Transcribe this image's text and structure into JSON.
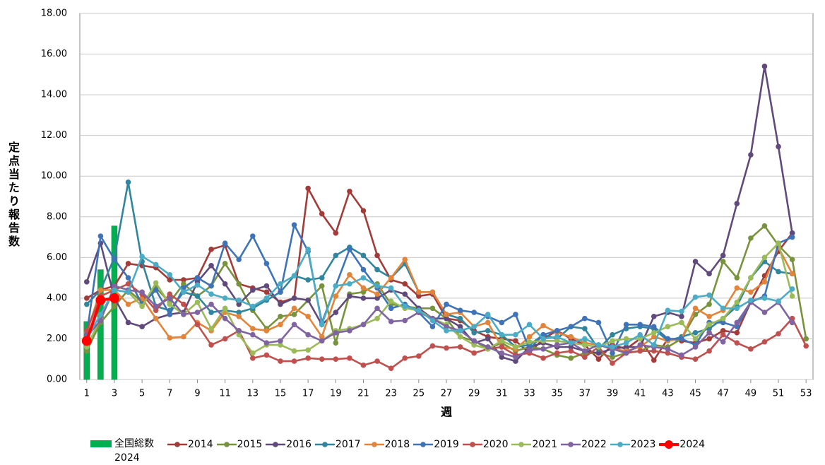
{
  "chart_data": {
    "type": "line",
    "y_label": "定点当たり報告数",
    "x_label": "週",
    "xlim": [
      0.5,
      53.5
    ],
    "x": [
      1,
      2,
      3,
      4,
      5,
      6,
      7,
      8,
      9,
      10,
      11,
      12,
      13,
      14,
      15,
      16,
      17,
      18,
      19,
      20,
      21,
      22,
      23,
      24,
      25,
      26,
      27,
      28,
      29,
      30,
      31,
      32,
      33,
      34,
      35,
      36,
      37,
      38,
      39,
      40,
      41,
      42,
      43,
      44,
      45,
      46,
      47,
      48,
      49,
      50,
      51,
      52,
      53
    ],
    "xticks": [
      1,
      3,
      5,
      7,
      9,
      11,
      13,
      15,
      17,
      19,
      21,
      23,
      25,
      27,
      29,
      31,
      33,
      35,
      37,
      39,
      41,
      43,
      45,
      47,
      49,
      51,
      53
    ],
    "ylim": [
      0,
      18
    ],
    "yticks": [
      {
        "value": 0,
        "label": "0.00"
      },
      {
        "value": 2,
        "label": "2.00"
      },
      {
        "value": 4,
        "label": "4.00"
      },
      {
        "value": 6,
        "label": "6.00"
      },
      {
        "value": 8,
        "label": "8.00"
      },
      {
        "value": 10,
        "label": "10.00"
      },
      {
        "value": 12,
        "label": "12.00"
      },
      {
        "value": 14,
        "label": "14.00"
      },
      {
        "value": 16,
        "label": "16.00"
      },
      {
        "value": 18,
        "label": "18.00"
      }
    ],
    "grid": true,
    "series": [
      {
        "name": "全国総数 2024",
        "type": "bar",
        "color": "#00b050",
        "values": [
          2.85,
          5.4,
          7.55,
          null,
          null,
          null,
          null,
          null,
          null,
          null,
          null,
          null,
          null,
          null,
          null,
          null,
          null,
          null,
          null,
          null,
          null,
          null,
          null,
          null,
          null,
          null,
          null,
          null,
          null,
          null,
          null,
          null,
          null,
          null,
          null,
          null,
          null,
          null,
          null,
          null,
          null,
          null,
          null,
          null,
          null,
          null,
          null,
          null,
          null,
          null,
          null,
          null,
          null
        ]
      },
      {
        "name": "2014",
        "color": "#a33b39",
        "values": [
          4.0,
          4.4,
          4.6,
          5.7,
          5.6,
          5.5,
          4.9,
          4.9,
          5.0,
          6.4,
          6.6,
          4.7,
          4.5,
          4.3,
          3.8,
          4.0,
          9.4,
          8.15,
          7.2,
          9.25,
          8.3,
          6.1,
          4.9,
          4.7,
          4.1,
          4.2,
          3.0,
          2.9,
          2.4,
          2.1,
          2.0,
          1.9,
          1.3,
          2.0,
          2.4,
          2.0,
          1.7,
          1.0,
          1.7,
          1.5,
          2.0,
          0.95,
          2.0,
          1.9,
          1.8,
          2.0,
          2.4,
          2.3,
          3.8,
          5.1,
          6.3,
          7.2,
          null
        ]
      },
      {
        "name": "2015",
        "color": "#77933c",
        "values": [
          1.4,
          2.8,
          3.6,
          4.4,
          3.8,
          4.5,
          3.8,
          4.7,
          4.1,
          4.6,
          5.7,
          4.7,
          3.4,
          2.5,
          3.1,
          3.2,
          3.9,
          4.6,
          1.8,
          4.2,
          4.3,
          4.7,
          3.7,
          3.6,
          3.5,
          3.5,
          3.0,
          2.1,
          1.9,
          1.5,
          1.8,
          1.4,
          1.6,
          1.5,
          1.2,
          1.05,
          1.3,
          1.3,
          1.1,
          1.3,
          1.4,
          1.7,
          1.6,
          2.0,
          3.2,
          3.7,
          5.8,
          5.0,
          6.95,
          7.55,
          6.6,
          5.9,
          2.0
        ]
      },
      {
        "name": "2016",
        "color": "#604a7b",
        "values": [
          4.8,
          6.7,
          4.0,
          2.8,
          2.6,
          3.0,
          3.2,
          3.3,
          4.8,
          5.6,
          4.7,
          3.7,
          4.4,
          4.6,
          3.7,
          4.0,
          3.9,
          2.7,
          3.3,
          4.1,
          4.0,
          4.0,
          4.4,
          4.2,
          3.5,
          3.0,
          3.0,
          2.6,
          1.8,
          2.0,
          1.1,
          0.9,
          1.6,
          1.8,
          1.6,
          1.6,
          1.4,
          1.3,
          1.5,
          1.6,
          1.6,
          3.1,
          3.3,
          3.1,
          5.8,
          5.2,
          6.1,
          8.65,
          11.05,
          15.4,
          11.45,
          7.2,
          null
        ]
      },
      {
        "name": "2017",
        "color": "#31859c",
        "values": [
          3.7,
          4.4,
          6.0,
          9.7,
          5.8,
          3.6,
          3.4,
          4.3,
          4.1,
          3.3,
          3.4,
          3.3,
          3.5,
          3.9,
          4.3,
          5.1,
          4.9,
          5.0,
          6.1,
          6.5,
          6.1,
          5.4,
          5.0,
          5.7,
          4.3,
          4.3,
          3.2,
          3.0,
          2.3,
          2.4,
          2.2,
          1.6,
          1.7,
          2.2,
          2.0,
          2.6,
          2.5,
          1.5,
          2.2,
          2.5,
          2.6,
          2.5,
          1.9,
          2.1,
          2.3,
          2.5,
          3.0,
          3.6,
          5.0,
          5.8,
          5.3,
          5.2,
          null
        ]
      },
      {
        "name": "2018",
        "color": "#e2843a",
        "values": [
          2.3,
          4.4,
          4.4,
          3.7,
          4.0,
          3.0,
          2.05,
          2.1,
          2.8,
          2.4,
          3.3,
          3.1,
          2.5,
          2.4,
          2.7,
          3.5,
          3.1,
          2.1,
          4.1,
          5.15,
          4.5,
          4.2,
          5.0,
          5.9,
          4.3,
          4.3,
          3.2,
          3.3,
          2.6,
          2.8,
          1.6,
          1.5,
          2.1,
          2.65,
          2.3,
          2.1,
          1.8,
          1.7,
          1.5,
          1.4,
          1.6,
          2.1,
          1.9,
          2.0,
          3.5,
          3.1,
          3.4,
          4.5,
          4.3,
          4.8,
          6.5,
          5.2,
          null
        ]
      },
      {
        "name": "2019",
        "color": "#3f73b8",
        "values": [
          2.2,
          7.05,
          5.9,
          5.0,
          3.7,
          4.4,
          3.2,
          4.5,
          5.0,
          4.6,
          6.7,
          5.9,
          7.05,
          5.7,
          4.3,
          7.6,
          6.3,
          2.8,
          4.6,
          6.4,
          5.4,
          4.5,
          3.5,
          3.7,
          3.3,
          2.6,
          3.7,
          3.4,
          3.3,
          3.1,
          2.8,
          3.2,
          1.5,
          2.2,
          2.4,
          2.6,
          3.0,
          2.8,
          1.3,
          2.7,
          2.7,
          2.6,
          2.0,
          2.0,
          1.7,
          2.8,
          2.8,
          2.6,
          3.8,
          4.1,
          6.7,
          7.0,
          null
        ]
      },
      {
        "name": "2020",
        "color": "#c0504d",
        "values": [
          2.4,
          4.1,
          4.4,
          4.7,
          4.2,
          3.4,
          4.2,
          3.7,
          2.7,
          1.7,
          2.0,
          2.4,
          1.05,
          1.2,
          0.9,
          0.9,
          1.05,
          1.0,
          1.0,
          1.05,
          0.7,
          0.9,
          0.55,
          1.05,
          1.15,
          1.65,
          1.55,
          1.6,
          1.3,
          1.5,
          1.6,
          1.2,
          1.3,
          1.05,
          1.3,
          1.4,
          1.1,
          1.6,
          0.8,
          1.3,
          1.4,
          1.4,
          1.3,
          1.1,
          1.0,
          1.4,
          2.2,
          1.8,
          1.5,
          1.85,
          2.25,
          3.0,
          1.65
        ]
      },
      {
        "name": "2021",
        "color": "#9bbb59",
        "values": [
          1.6,
          3.0,
          4.4,
          4.3,
          3.6,
          4.75,
          3.7,
          3.2,
          3.8,
          2.5,
          3.5,
          2.2,
          1.3,
          1.7,
          1.7,
          1.4,
          1.45,
          1.9,
          2.4,
          2.5,
          2.7,
          3.0,
          3.85,
          3.5,
          3.4,
          3.0,
          2.7,
          2.1,
          1.7,
          1.5,
          1.9,
          1.6,
          1.85,
          1.9,
          1.9,
          1.8,
          1.7,
          1.6,
          1.9,
          2.0,
          2.0,
          2.3,
          2.6,
          2.8,
          2.0,
          2.7,
          3.0,
          3.8,
          5.0,
          6.0,
          6.7,
          4.1,
          null
        ]
      },
      {
        "name": "2022",
        "color": "#8064a2",
        "values": [
          2.1,
          2.9,
          4.6,
          4.4,
          4.3,
          3.6,
          4.0,
          3.2,
          3.3,
          3.7,
          3.0,
          2.4,
          2.2,
          1.8,
          1.9,
          2.7,
          2.2,
          1.9,
          2.3,
          2.4,
          2.7,
          3.5,
          2.85,
          2.9,
          3.3,
          3.0,
          2.6,
          2.4,
          1.9,
          1.6,
          1.3,
          1.1,
          1.45,
          1.5,
          1.7,
          1.8,
          1.4,
          1.7,
          1.5,
          1.3,
          1.7,
          1.6,
          1.5,
          1.2,
          1.6,
          2.3,
          1.85,
          2.8,
          3.8,
          3.3,
          3.8,
          2.8,
          null
        ]
      },
      {
        "name": "2023",
        "color": "#4bacc6",
        "values": [
          2.0,
          3.2,
          4.4,
          4.3,
          6.05,
          5.65,
          5.15,
          4.3,
          4.65,
          4.2,
          4.0,
          3.9,
          3.6,
          4.0,
          4.7,
          5.1,
          6.4,
          2.7,
          4.6,
          4.7,
          5.0,
          4.6,
          4.5,
          3.6,
          3.4,
          2.9,
          2.4,
          2.4,
          2.6,
          3.2,
          2.2,
          2.2,
          2.7,
          2.0,
          2.1,
          1.8,
          2.0,
          1.7,
          1.6,
          1.8,
          2.2,
          1.7,
          3.4,
          3.35,
          4.05,
          4.15,
          3.5,
          3.5,
          3.9,
          4.0,
          3.85,
          4.45,
          null
        ]
      },
      {
        "name": "2024",
        "color": "#ff0000",
        "emphasis": true,
        "values": [
          1.9,
          3.9,
          4.0,
          null,
          null,
          null,
          null,
          null,
          null,
          null,
          null,
          null,
          null,
          null,
          null,
          null,
          null,
          null,
          null,
          null,
          null,
          null,
          null,
          null,
          null,
          null,
          null,
          null,
          null,
          null,
          null,
          null,
          null,
          null,
          null,
          null,
          null,
          null,
          null,
          null,
          null,
          null,
          null,
          null,
          null,
          null,
          null,
          null,
          null,
          null,
          null,
          null,
          null
        ]
      }
    ]
  }
}
